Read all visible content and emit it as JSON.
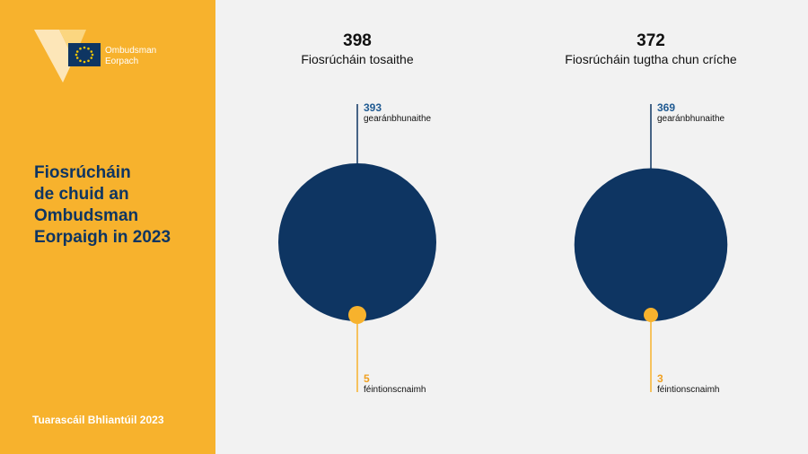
{
  "brand": {
    "name_line1": "Ombudsman",
    "name_line2": "Eorpach",
    "colors": {
      "yellow": "#f7b22d",
      "navy": "#0e3562",
      "background": "#f2f2f2"
    }
  },
  "sidebar": {
    "title_lines": [
      "Fiosrúcháin",
      "de chuid an",
      "Ombudsman",
      "Eorpaigh in 2023"
    ],
    "footer": "Tuarascáil Bhliantúil 2023"
  },
  "chart_data": {
    "type": "proportional-circles",
    "charts": [
      {
        "total": "398",
        "title": "Fiosrúcháin tosaithe",
        "series": [
          {
            "value": 393,
            "label": "gearánbhunaithe",
            "color": "#0e3562"
          },
          {
            "value": 5,
            "label": "féintionscnaimh",
            "color": "#f7b22d"
          }
        ]
      },
      {
        "total": "372",
        "title": "Fiosrúcháin tugtha chun críche",
        "series": [
          {
            "value": 369,
            "label": "gearánbhunaithe",
            "color": "#0e3562"
          },
          {
            "value": 3,
            "label": "féintionscnaimh",
            "color": "#f7b22d"
          }
        ]
      }
    ]
  }
}
